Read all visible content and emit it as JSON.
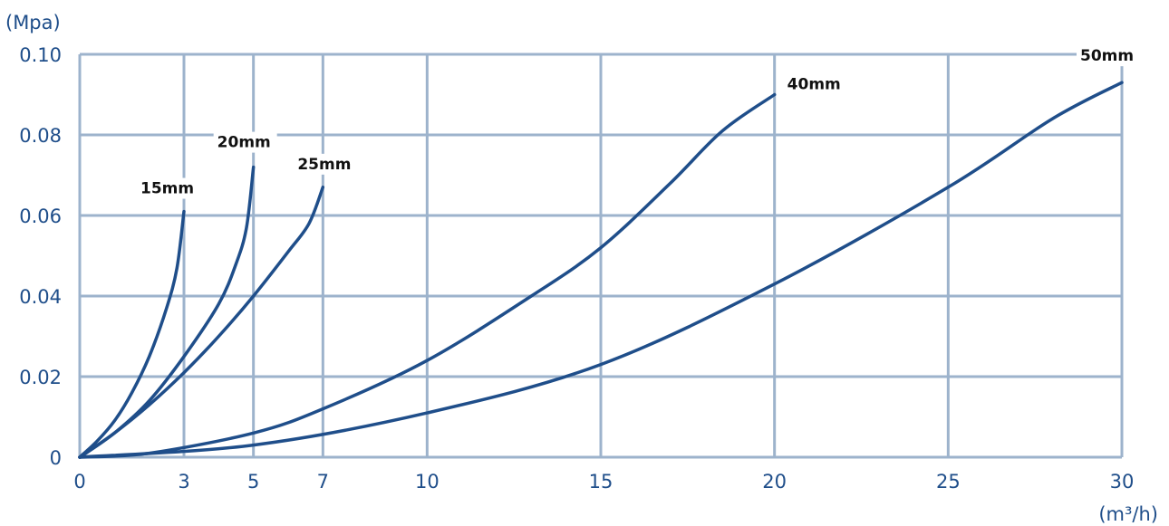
{
  "chart_data": {
    "type": "line",
    "title": "",
    "xlabel": "(m³/h)",
    "ylabel": "(Mpa)",
    "xlim": [
      0,
      30
    ],
    "ylim": [
      0,
      0.1
    ],
    "x_ticks": [
      0,
      3,
      5,
      7,
      10,
      15,
      20,
      25,
      30
    ],
    "x_tick_labels": [
      "0",
      "3",
      "5",
      "7",
      "10",
      "15",
      "20",
      "25",
      "30"
    ],
    "y_ticks": [
      0,
      0.02,
      0.04,
      0.06,
      0.08,
      0.1
    ],
    "y_tick_labels": [
      "0",
      "0.02",
      "0.04",
      "0.06",
      "0.08",
      "0.10"
    ],
    "grid": true,
    "legend": "none (series labeled at curve ends)",
    "colors": {
      "line": "#1f4e8a",
      "grid": "#9db3cc",
      "axis_text": "#1f4e8a",
      "label_text": "#111111"
    },
    "series": [
      {
        "name": "15mm",
        "points": [
          [
            0,
            0
          ],
          [
            0.5,
            0.004
          ],
          [
            1,
            0.009
          ],
          [
            1.5,
            0.016
          ],
          [
            2,
            0.025
          ],
          [
            2.5,
            0.037
          ],
          [
            2.8,
            0.047
          ],
          [
            3,
            0.061
          ]
        ]
      },
      {
        "name": "20mm",
        "points": [
          [
            0,
            0
          ],
          [
            1,
            0.006
          ],
          [
            2,
            0.014
          ],
          [
            3,
            0.025
          ],
          [
            4,
            0.038
          ],
          [
            4.5,
            0.048
          ],
          [
            4.8,
            0.057
          ],
          [
            5,
            0.072
          ]
        ]
      },
      {
        "name": "25mm",
        "points": [
          [
            0,
            0
          ],
          [
            1,
            0.006
          ],
          [
            2,
            0.013
          ],
          [
            3,
            0.021
          ],
          [
            4,
            0.03
          ],
          [
            5,
            0.04
          ],
          [
            6,
            0.051
          ],
          [
            6.6,
            0.058
          ],
          [
            7,
            0.067
          ]
        ]
      },
      {
        "name": "40mm",
        "points": [
          [
            0,
            0
          ],
          [
            2,
            0.001
          ],
          [
            5,
            0.006
          ],
          [
            7,
            0.012
          ],
          [
            10,
            0.024
          ],
          [
            13,
            0.04
          ],
          [
            15,
            0.052
          ],
          [
            17,
            0.068
          ],
          [
            18.5,
            0.081
          ],
          [
            20,
            0.09
          ]
        ]
      },
      {
        "name": "50mm",
        "points": [
          [
            0,
            0
          ],
          [
            5,
            0.003
          ],
          [
            10,
            0.011
          ],
          [
            15,
            0.023
          ],
          [
            20,
            0.043
          ],
          [
            25,
            0.067
          ],
          [
            28,
            0.084
          ],
          [
            30,
            0.093
          ]
        ]
      }
    ]
  }
}
